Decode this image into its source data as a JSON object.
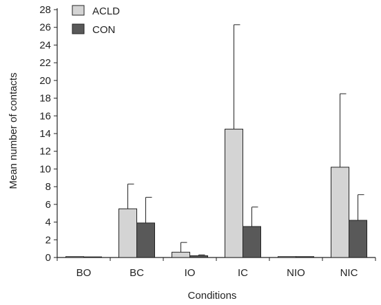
{
  "chart_data": {
    "type": "bar",
    "categories": [
      "BO",
      "BC",
      "IO",
      "IC",
      "NIO",
      "NIC"
    ],
    "series": [
      {
        "name": "ACLD",
        "color": "#d4d4d4",
        "values": [
          0.1,
          5.5,
          0.6,
          14.5,
          0.1,
          10.2
        ],
        "errors": [
          0.0,
          2.8,
          1.1,
          11.8,
          0.0,
          8.3
        ]
      },
      {
        "name": "CON",
        "color": "#595959",
        "values": [
          0.0,
          3.9,
          0.2,
          3.5,
          0.1,
          4.2
        ],
        "errors": [
          0.0,
          2.9,
          0.1,
          2.2,
          0.0,
          2.9
        ]
      }
    ],
    "xlabel": "Conditions",
    "ylabel": "Mean number of contacts",
    "ylim": [
      0,
      28
    ],
    "yticks": [
      0,
      2,
      4,
      6,
      8,
      10,
      12,
      14,
      16,
      18,
      20,
      22,
      24,
      26,
      28
    ],
    "legend_position": "top-left",
    "grid": false
  }
}
